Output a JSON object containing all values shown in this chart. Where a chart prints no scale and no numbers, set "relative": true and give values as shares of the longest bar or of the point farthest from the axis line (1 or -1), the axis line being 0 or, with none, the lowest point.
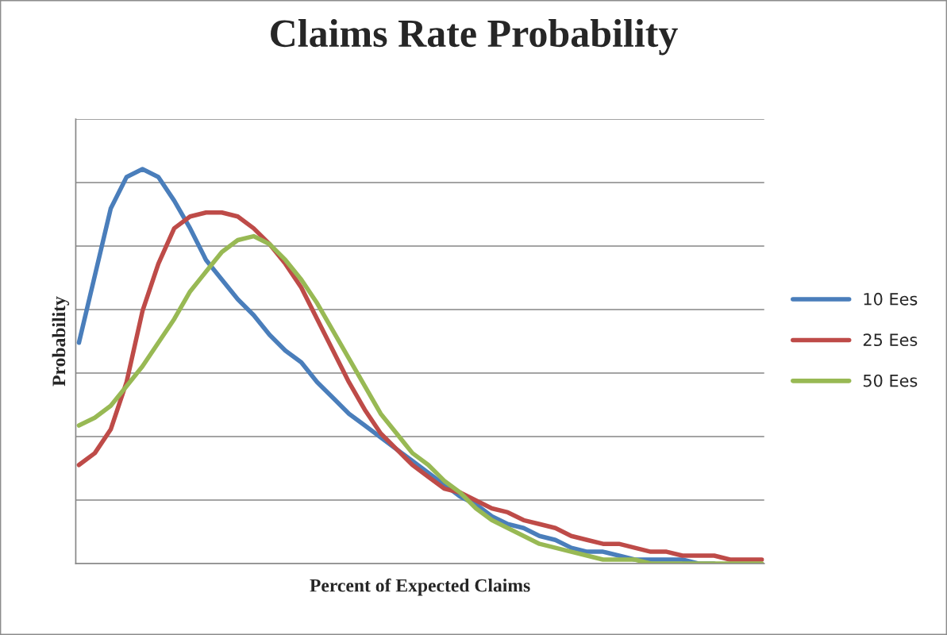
{
  "chart_data": {
    "type": "line",
    "title": "Claims Rate Probability",
    "xlabel": "Percent of Expected Claims",
    "ylabel": "Probability",
    "relative": true,
    "grid": "y",
    "legend": "right",
    "categories": [
      null,
      null,
      null,
      null,
      null,
      null,
      null,
      null,
      null,
      null,
      null,
      null,
      null,
      null,
      null,
      null,
      null,
      null,
      null,
      null,
      null,
      null,
      null,
      null,
      null,
      null,
      null,
      null,
      null,
      null,
      null,
      null,
      null,
      null,
      null,
      null,
      null,
      null,
      null,
      null,
      null,
      null,
      null,
      null
    ],
    "series": [
      {
        "name": "10 Ees",
        "color": "#4a7ebb",
        "values": [
          0.56,
          0.73,
          0.9,
          0.98,
          1.0,
          0.98,
          0.92,
          0.85,
          0.77,
          0.72,
          0.67,
          0.63,
          0.58,
          0.54,
          0.51,
          0.46,
          0.42,
          0.38,
          0.35,
          0.32,
          0.29,
          0.26,
          0.23,
          0.2,
          0.17,
          0.15,
          0.12,
          0.1,
          0.09,
          0.07,
          0.06,
          0.04,
          0.03,
          0.03,
          0.02,
          0.01,
          0.01,
          0.01,
          0.01,
          0.0,
          0.0,
          null,
          null,
          null
        ]
      },
      {
        "name": "25 Ees",
        "color": "#be4b48",
        "values": [
          0.25,
          0.28,
          0.34,
          0.46,
          0.64,
          0.76,
          0.85,
          0.88,
          0.89,
          0.89,
          0.88,
          0.85,
          0.81,
          0.76,
          0.7,
          0.62,
          0.54,
          0.46,
          0.39,
          0.33,
          0.29,
          0.25,
          0.22,
          0.19,
          0.18,
          0.16,
          0.14,
          0.13,
          0.11,
          0.1,
          0.09,
          0.07,
          0.06,
          0.05,
          0.05,
          0.04,
          0.03,
          0.03,
          0.02,
          0.02,
          0.02,
          0.01,
          0.01,
          0.01
        ]
      },
      {
        "name": "50 Ees",
        "color": "#98b954",
        "values": [
          0.35,
          0.37,
          0.4,
          0.45,
          0.5,
          0.56,
          0.62,
          0.69,
          0.74,
          0.79,
          0.82,
          0.83,
          0.81,
          0.77,
          0.72,
          0.66,
          0.59,
          0.52,
          0.45,
          0.38,
          0.33,
          0.28,
          0.25,
          0.21,
          0.18,
          0.14,
          0.11,
          0.09,
          0.07,
          0.05,
          0.04,
          0.03,
          0.02,
          0.01,
          0.01,
          0.01,
          0.0,
          0.0,
          0.0,
          0.0,
          0.0,
          0.0,
          0.0,
          0.0
        ]
      }
    ]
  }
}
